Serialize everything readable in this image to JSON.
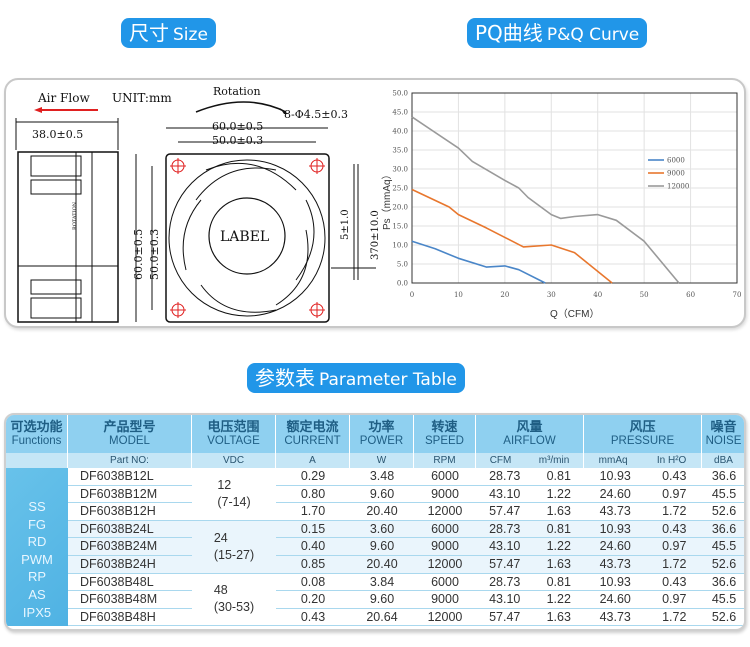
{
  "headings": {
    "size": {
      "cn": "尺寸",
      "en": "Size"
    },
    "curve": {
      "cn": "PQ曲线",
      "en": "P&Q Curve"
    },
    "table": {
      "cn": "参数表",
      "en": "Parameter Table"
    }
  },
  "drawing": {
    "airflow_label": "Air Flow",
    "unit_label": "UNIT:mm",
    "rotation_label": "Rotation",
    "depth_dim": "38.0±0.5",
    "outer_width_dim": "60.0±0.5",
    "hole_spacing_dim": "50.0±0.3",
    "hole_dim": "8-Φ4.5±0.3",
    "outer_height_dim": "60.0±0.5",
    "hole_height_dim": "50.0±0.3",
    "strip_dim": "5±1.0",
    "lead_dim": "370±10.0",
    "label_text": "LABEL",
    "side_text": [
      "AIR",
      "FLOW",
      "ROTATION"
    ]
  },
  "chart_data": {
    "type": "line",
    "title": "",
    "xlabel": "Q（CFM）",
    "ylabel": "Ps（mmAq）",
    "xlim": [
      0,
      70
    ],
    "ylim": [
      0,
      50
    ],
    "x_ticks": [
      "0",
      "10",
      "20",
      "30",
      "40",
      "50",
      "60",
      "70"
    ],
    "y_ticks": [
      "0.0",
      "5.0",
      "10.0",
      "15.0",
      "20.0",
      "25.0",
      "30.0",
      "35.0",
      "40.0",
      "45.0",
      "50.0"
    ],
    "grid": true,
    "legend_position": "right",
    "series": [
      {
        "name": "6000",
        "color": "#4a86c8",
        "points": [
          [
            0,
            11
          ],
          [
            5,
            9
          ],
          [
            10,
            6.5
          ],
          [
            16,
            4.2
          ],
          [
            20,
            4.5
          ],
          [
            23,
            3.5
          ],
          [
            28.7,
            0
          ]
        ]
      },
      {
        "name": "9000",
        "color": "#e8772e",
        "points": [
          [
            0,
            24.6
          ],
          [
            8,
            20
          ],
          [
            10,
            18
          ],
          [
            16,
            14.5
          ],
          [
            20,
            12
          ],
          [
            24,
            9.5
          ],
          [
            30,
            10
          ],
          [
            35,
            8
          ],
          [
            43.1,
            0
          ]
        ]
      },
      {
        "name": "12000",
        "color": "#9a9a9a",
        "points": [
          [
            0,
            43.7
          ],
          [
            10,
            35.5
          ],
          [
            13,
            32
          ],
          [
            20,
            27
          ],
          [
            23,
            25
          ],
          [
            25,
            22.5
          ],
          [
            30,
            18
          ],
          [
            32,
            17
          ],
          [
            35,
            17.5
          ],
          [
            40,
            18
          ],
          [
            44,
            16.5
          ],
          [
            50,
            11
          ],
          [
            57.5,
            0
          ]
        ]
      }
    ]
  },
  "table": {
    "headers": [
      {
        "cn": "可选功能",
        "en": "Functions",
        "unit": ""
      },
      {
        "cn": "产品型号",
        "en": "MODEL",
        "unit": "Part NO:"
      },
      {
        "cn": "电压范围",
        "en": "VOLTAGE",
        "unit": "VDC"
      },
      {
        "cn": "额定电流",
        "en": "CURRENT",
        "unit": "A"
      },
      {
        "cn": "功率",
        "en": "POWER",
        "unit": "W"
      },
      {
        "cn": "转速",
        "en": "SPEED",
        "unit": "RPM"
      },
      {
        "cn": "风量",
        "en": "AIRFLOW",
        "unit": "CFM",
        "unit2": "m³/min"
      },
      {
        "cn": "风压",
        "en": "PRESSURE",
        "unit": "mmAq",
        "unit2": "In H²O"
      },
      {
        "cn": "噪音",
        "en": "NOISE",
        "unit": "dBA"
      }
    ],
    "functions": [
      "SS",
      "FG",
      "RD",
      "PWM",
      "RP",
      "AS",
      "IPX5"
    ],
    "voltage_groups": [
      {
        "nominal": "12",
        "range": "(7-14)"
      },
      {
        "nominal": "24",
        "range": "(15-27)"
      },
      {
        "nominal": "48",
        "range": "(30-53)"
      }
    ],
    "rows": [
      {
        "model": "DF6038B12L",
        "current": "0.29",
        "power": "3.48",
        "speed": "6000",
        "cfm": "28.73",
        "m3min": "0.81",
        "mmaq": "10.93",
        "inh2o": "0.43",
        "noise": "36.6"
      },
      {
        "model": "DF6038B12M",
        "current": "0.80",
        "power": "9.60",
        "speed": "9000",
        "cfm": "43.10",
        "m3min": "1.22",
        "mmaq": "24.60",
        "inh2o": "0.97",
        "noise": "45.5"
      },
      {
        "model": "DF6038B12H",
        "current": "1.70",
        "power": "20.40",
        "speed": "12000",
        "cfm": "57.47",
        "m3min": "1.63",
        "mmaq": "43.73",
        "inh2o": "1.72",
        "noise": "52.6"
      },
      {
        "model": "DF6038B24L",
        "current": "0.15",
        "power": "3.60",
        "speed": "6000",
        "cfm": "28.73",
        "m3min": "0.81",
        "mmaq": "10.93",
        "inh2o": "0.43",
        "noise": "36.6"
      },
      {
        "model": "DF6038B24M",
        "current": "0.40",
        "power": "9.60",
        "speed": "9000",
        "cfm": "43.10",
        "m3min": "1.22",
        "mmaq": "24.60",
        "inh2o": "0.97",
        "noise": "45.5"
      },
      {
        "model": "DF6038B24H",
        "current": "0.85",
        "power": "20.40",
        "speed": "12000",
        "cfm": "57.47",
        "m3min": "1.63",
        "mmaq": "43.73",
        "inh2o": "1.72",
        "noise": "52.6"
      },
      {
        "model": "DF6038B48L",
        "current": "0.08",
        "power": "3.84",
        "speed": "6000",
        "cfm": "28.73",
        "m3min": "0.81",
        "mmaq": "10.93",
        "inh2o": "0.43",
        "noise": "36.6"
      },
      {
        "model": "DF6038B48M",
        "current": "0.20",
        "power": "9.60",
        "speed": "9000",
        "cfm": "43.10",
        "m3min": "1.22",
        "mmaq": "24.60",
        "inh2o": "0.97",
        "noise": "45.5"
      },
      {
        "model": "DF6038B48H",
        "current": "0.43",
        "power": "20.64",
        "speed": "12000",
        "cfm": "57.47",
        "m3min": "1.63",
        "mmaq": "43.73",
        "inh2o": "1.72",
        "noise": "52.6"
      }
    ]
  }
}
